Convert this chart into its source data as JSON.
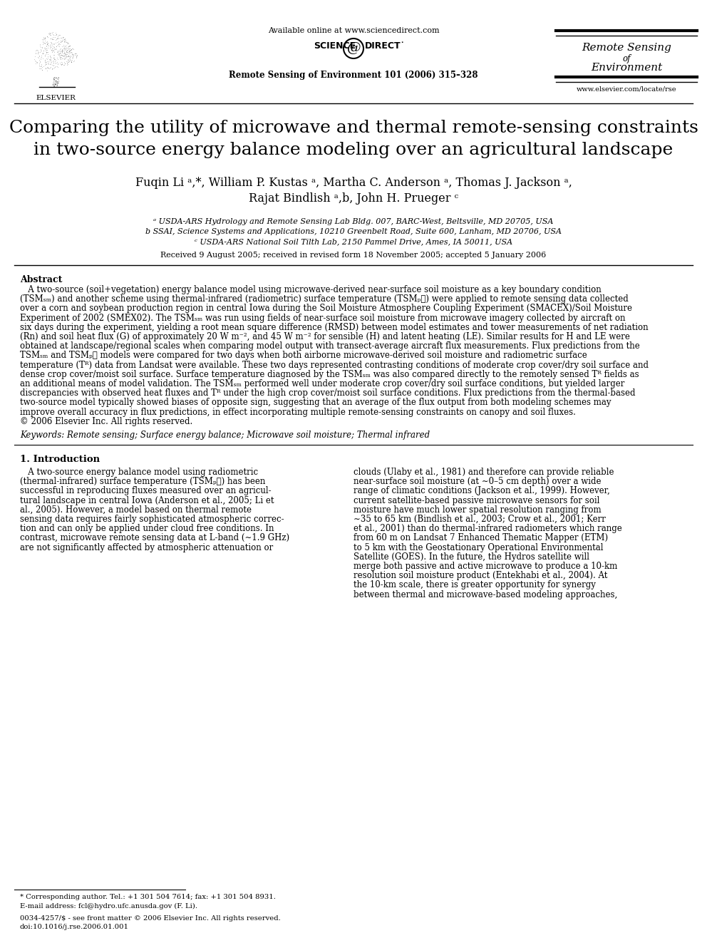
{
  "background_color": "#ffffff",
  "page_width": 9.92,
  "page_height": 13.23,
  "dpi": 100,
  "header": {
    "available_online": "Available online at www.sciencedirect.com",
    "journal_ref": "Remote Sensing of Environment 101 (2006) 315–328",
    "journal_name_line1": "Remote Sensing",
    "journal_name_line2": "of",
    "journal_name_line3": "Environment",
    "journal_url": "www.elsevier.com/locate/rse"
  },
  "title_line1": "Comparing the utility of microwave and thermal remote-sensing constraints",
  "title_line2": "in two-source energy balance modeling over an agricultural landscape",
  "authors": "Fuqin Li ᵃ,*, William P. Kustas ᵃ, Martha C. Anderson ᵃ, Thomas J. Jackson ᵃ,",
  "authors2": "Rajat Bindlish ᵃ,b, John H. Prueger ᶜ",
  "affil_a": "ᵃ USDA-ARS Hydrology and Remote Sensing Lab Bldg. 007, BARC-West, Beltsville, MD 20705, USA",
  "affil_b": "b SSAI, Science Systems and Applications, 10210 Greenbelt Road, Suite 600, Lanham, MD 20706, USA",
  "affil_c": "ᶜ USDA-ARS National Soil Tilth Lab, 2150 Pammel Drive, Ames, IA 50011, USA",
  "received": "Received 9 August 2005; received in revised form 18 November 2005; accepted 5 January 2006",
  "abstract_title": "Abstract",
  "keywords": "Keywords: Remote sensing; Surface energy balance; Microwave soil moisture; Thermal infrared",
  "section1_title": "1. Introduction",
  "abstract_lines": [
    "   A two-source (soil+vegetation) energy balance model using microwave-derived near-surface soil moisture as a key boundary condition",
    "(TSMₛₘ) and another scheme using thermal-infrared (radiometric) surface temperature (TSMₚℋ) were applied to remote sensing data collected",
    "over a corn and soybean production region in central Iowa during the Soil Moisture Atmosphere Coupling Experiment (SMACEX)/Soil Moisture",
    "Experiment of 2002 (SMEX02). The TSMₛₘ was run using fields of near-surface soil moisture from microwave imagery collected by aircraft on",
    "six days during the experiment, yielding a root mean square difference (RMSD) between model estimates and tower measurements of net radiation",
    "(Rn) and soil heat flux (G) of approximately 20 W m⁻², and 45 W m⁻² for sensible (H) and latent heating (LE). Similar results for H and LE were",
    "obtained at landscape/regional scales when comparing model output with transect-average aircraft flux measurements. Flux predictions from the",
    "TSMₛₘ and TSMₚℋ models were compared for two days when both airborne microwave-derived soil moisture and radiometric surface",
    "temperature (Tᴿ) data from Landsat were available. These two days represented contrasting conditions of moderate crop cover/dry soil surface and",
    "dense crop cover/moist soil surface. Surface temperature diagnosed by the TSMₛₘ was also compared directly to the remotely sensed Tᴿ fields as",
    "an additional means of model validation. The TSMₛₘ performed well under moderate crop cover/dry soil surface conditions, but yielded larger",
    "discrepancies with observed heat fluxes and Tᴿ under the high crop cover/moist soil surface conditions. Flux predictions from the thermal-based",
    "two-source model typically showed biases of opposite sign, suggesting that an average of the flux output from both modeling schemes may",
    "improve overall accuracy in flux predictions, in effect incorporating multiple remote-sensing constraints on canopy and soil fluxes.",
    "© 2006 Elsevier Inc. All rights reserved."
  ],
  "intro_left_lines": [
    "   A two-source energy balance model using radiometric",
    "(thermal-infrared) surface temperature (TSMₚℋ) has been",
    "successful in reproducing fluxes measured over an agricul-",
    "tural landscape in central Iowa (Anderson et al., 2005; Li et",
    "al., 2005). However, a model based on thermal remote",
    "sensing data requires fairly sophisticated atmospheric correc-",
    "tion and can only be applied under cloud free conditions. In",
    "contrast, microwave remote sensing data at L-band (∼1.9 GHz)",
    "are not significantly affected by atmospheric attenuation or"
  ],
  "intro_right_lines": [
    "clouds (Ulaby et al., 1981) and therefore can provide reliable",
    "near-surface soil moisture (at ∼0–5 cm depth) over a wide",
    "range of climatic conditions (Jackson et al., 1999). However,",
    "current satellite-based passive microwave sensors for soil",
    "moisture have much lower spatial resolution ranging from",
    "∼35 to 65 km (Bindlish et al., 2003; Crow et al., 2001; Kerr",
    "et al., 2001) than do thermal-infrared radiometers which range",
    "from 60 m on Landsat 7 Enhanced Thematic Mapper (ETM)",
    "to 5 km with the Geostationary Operational Environmental",
    "Satellite (GOES). In the future, the Hydros satellite will",
    "merge both passive and active microwave to produce a 10-km",
    "resolution soil moisture product (Entekhabi et al., 2004). At",
    "the 10-km scale, there is greater opportunity for synergy",
    "between thermal and microwave-based modeling approaches,"
  ],
  "footnote_corresponding": "* Corresponding author. Tel.: +1 301 504 7614; fax: +1 301 504 8931.",
  "footnote_email": "E-mail address: fcl@hydro.ufc.anusda.gov (F. Li).",
  "footnote_issn": "0034-4257/$ - see front matter © 2006 Elsevier Inc. All rights reserved.",
  "footnote_doi": "doi:10.1016/j.rse.2006.01.001"
}
